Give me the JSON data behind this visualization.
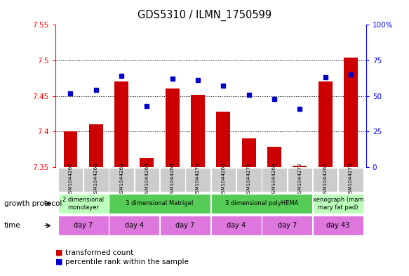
{
  "title": "GDS5310 / ILMN_1750599",
  "samples": [
    "GSM1044262",
    "GSM1044268",
    "GSM1044263",
    "GSM1044269",
    "GSM1044264",
    "GSM1044270",
    "GSM1044265",
    "GSM1044271",
    "GSM1044266",
    "GSM1044272",
    "GSM1044267",
    "GSM1044273"
  ],
  "transformed_count": [
    7.4,
    7.41,
    7.47,
    7.363,
    7.46,
    7.452,
    7.428,
    7.39,
    7.378,
    7.352,
    7.47,
    7.504
  ],
  "percentile_rank": [
    52,
    54,
    64,
    43,
    62,
    61,
    57,
    51,
    48,
    41,
    63,
    65
  ],
  "ylim_left": [
    7.35,
    7.55
  ],
  "ylim_right": [
    0,
    100
  ],
  "yticks_left": [
    7.35,
    7.4,
    7.45,
    7.5,
    7.55
  ],
  "yticks_right": [
    0,
    25,
    50,
    75,
    100
  ],
  "ytick_labels_right": [
    "0",
    "25",
    "50",
    "75",
    "100%"
  ],
  "bar_color": "#cc0000",
  "dot_color": "#0000cc",
  "baseline": 7.35,
  "growth_protocol_groups": [
    {
      "label": "2 dimensional\nmonolayer",
      "start": 0,
      "end": 2,
      "color": "#bbffbb"
    },
    {
      "label": "3 dimensional Matrigel",
      "start": 2,
      "end": 6,
      "color": "#55cc55"
    },
    {
      "label": "3 dimensional polyHEMA",
      "start": 6,
      "end": 10,
      "color": "#55cc55"
    },
    {
      "label": "xenograph (mam\nmary fat pad)",
      "start": 10,
      "end": 12,
      "color": "#bbffbb"
    }
  ],
  "time_groups": [
    {
      "label": "day 7",
      "start": 0,
      "end": 2
    },
    {
      "label": "day 4",
      "start": 2,
      "end": 4
    },
    {
      "label": "day 7",
      "start": 4,
      "end": 6
    },
    {
      "label": "day 4",
      "start": 6,
      "end": 8
    },
    {
      "label": "day 7",
      "start": 8,
      "end": 10
    },
    {
      "label": "day 43",
      "start": 10,
      "end": 12
    }
  ],
  "time_color": "#dd77dd",
  "sample_label_color": "#cccccc",
  "legend_red": "transformed count",
  "legend_blue": "percentile rank within the sample",
  "label_growth_protocol": "growth protocol",
  "label_time": "time"
}
